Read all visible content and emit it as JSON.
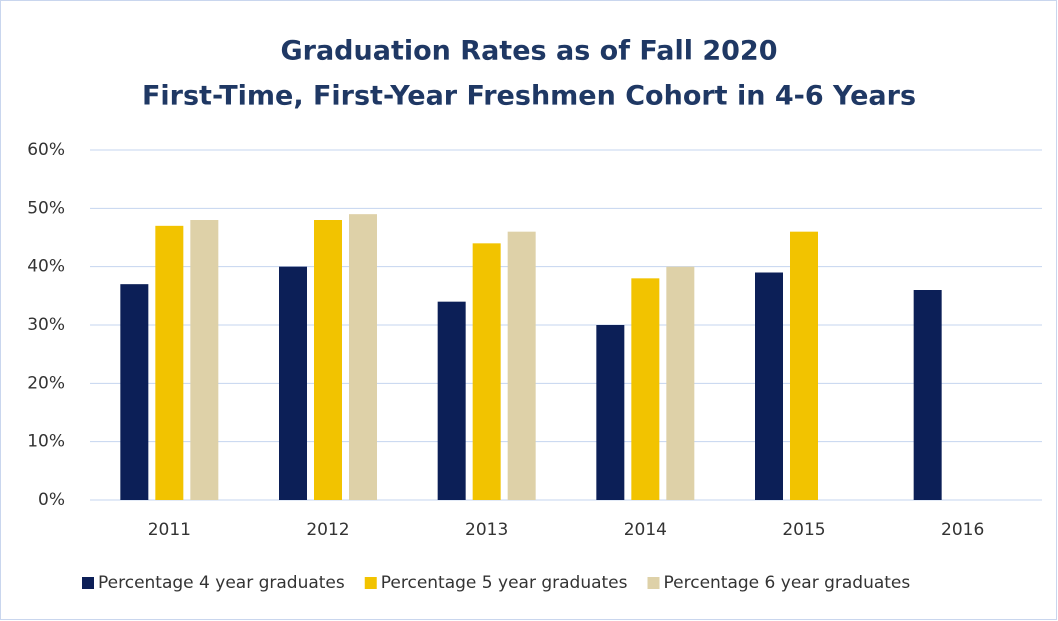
{
  "chart_data": {
    "type": "bar",
    "title": "Graduation Rates as of Fall 2020",
    "subtitle": "First-Time, First-Year Freshmen Cohort in 4-6 Years",
    "categories": [
      "2011",
      "2012",
      "2013",
      "2014",
      "2015",
      "2016"
    ],
    "series": [
      {
        "name": "Percentage 4 year graduates",
        "color": "#0c1f57",
        "values": [
          37,
          40,
          34,
          30,
          39,
          36
        ]
      },
      {
        "name": "Percentage 5 year graduates",
        "color": "#f2c300",
        "values": [
          47,
          48,
          44,
          38,
          46,
          null
        ]
      },
      {
        "name": "Percentage 6 year graduates",
        "color": "#ded1a8",
        "values": [
          48,
          49,
          46,
          40,
          null,
          null
        ]
      }
    ],
    "ylim": [
      0,
      60
    ],
    "yticks": [
      {
        "value": 0,
        "label": "0%"
      },
      {
        "value": 10,
        "label": "10%"
      },
      {
        "value": 20,
        "label": "20%"
      },
      {
        "value": 30,
        "label": "30%"
      },
      {
        "value": 40,
        "label": "40%"
      },
      {
        "value": 50,
        "label": "50%"
      },
      {
        "value": 60,
        "label": "60%"
      }
    ],
    "grid": true,
    "legend": "bottom"
  }
}
